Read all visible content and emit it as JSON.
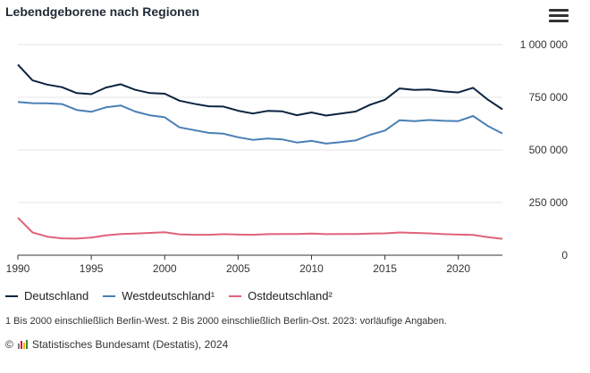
{
  "header": {
    "title": "Lebendgeborene nach Regionen",
    "menu_icon": "hamburger-menu-icon"
  },
  "chart_data": {
    "type": "line",
    "title": "Lebendgeborene nach Regionen",
    "x": [
      1990,
      1991,
      1992,
      1993,
      1994,
      1995,
      1996,
      1997,
      1998,
      1999,
      2000,
      2001,
      2002,
      2003,
      2004,
      2005,
      2006,
      2007,
      2008,
      2009,
      2010,
      2011,
      2012,
      2013,
      2014,
      2015,
      2016,
      2017,
      2018,
      2019,
      2020,
      2021,
      2022,
      2023
    ],
    "series": [
      {
        "name": "Deutschland",
        "color": "#0b2340",
        "values": [
          905000,
          830000,
          810000,
          798000,
          770000,
          765000,
          796000,
          812000,
          785000,
          770000,
          767000,
          734000,
          719000,
          707000,
          706000,
          686000,
          673000,
          685000,
          683000,
          665000,
          678000,
          663000,
          673000,
          682000,
          715000,
          738000,
          792000,
          785000,
          787000,
          778000,
          773000,
          795000,
          739000,
          693000
        ]
      },
      {
        "name": "Westdeutschland¹",
        "color": "#4a7fb5",
        "values": [
          728000,
          722000,
          721000,
          718000,
          690000,
          681000,
          702000,
          711000,
          682000,
          664000,
          655000,
          607000,
          594000,
          581000,
          577000,
          560000,
          548000,
          554000,
          550000,
          535000,
          543000,
          530000,
          537000,
          545000,
          572000,
          592000,
          641000,
          637000,
          642000,
          638000,
          637000,
          661000,
          614000,
          578000
        ]
      },
      {
        "name": "Ostdeutschland²",
        "color": "#e0627a",
        "values": [
          178000,
          108000,
          88000,
          80000,
          79000,
          84000,
          94000,
          101000,
          103000,
          106000,
          109000,
          99000,
          97000,
          97000,
          100000,
          98000,
          97000,
          100000,
          101000,
          101000,
          103000,
          100000,
          101000,
          101000,
          103000,
          104000,
          108000,
          106000,
          104000,
          100000,
          98000,
          96000,
          86000,
          78000
        ]
      }
    ],
    "x_ticks": [
      "1990",
      "1995",
      "2000",
      "2005",
      "2010",
      "2015",
      "2020"
    ],
    "y_ticks": [
      {
        "value": 0,
        "label": "0"
      },
      {
        "value": 250000,
        "label": "250 000"
      },
      {
        "value": 500000,
        "label": "500 000"
      },
      {
        "value": 750000,
        "label": "750 000"
      },
      {
        "value": 1000000,
        "label": "1 000 000"
      }
    ],
    "xlim": [
      1990,
      2023
    ],
    "ylim": [
      0,
      1000000
    ],
    "grid": true,
    "legend_position": "bottom-left"
  },
  "footnote": "1 Bis 2000 einschließlich Berlin-West. 2 Bis 2000 einschließlich Berlin-Ost. 2023: vorläufige Angaben.",
  "source": {
    "copyright": "©",
    "text": "Statistisches Bundesamt (Destatis), 2024",
    "logo_colors": [
      "#7a7a7a",
      "#e3001b",
      "#f4b400",
      "#2d8a3e"
    ]
  }
}
